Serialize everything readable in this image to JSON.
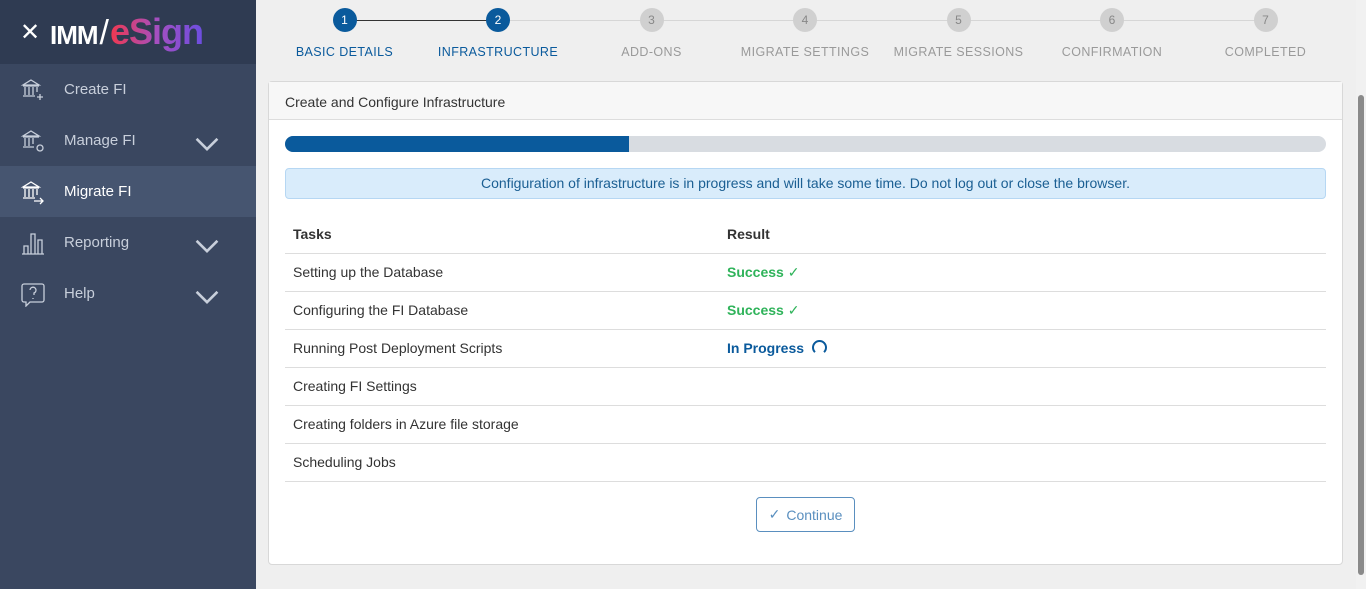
{
  "app": {
    "logo_left": "IMM",
    "logo_right": "eSign"
  },
  "sidebar": {
    "items": [
      {
        "label": "Create FI",
        "icon": "bank-plus-icon"
      },
      {
        "label": "Manage FI",
        "icon": "bank-gear-icon",
        "expandable": true
      },
      {
        "label": "Migrate FI",
        "icon": "bank-arrow-icon",
        "active": true
      },
      {
        "label": "Reporting",
        "icon": "bar-chart-icon",
        "expandable": true
      },
      {
        "label": "Help",
        "icon": "help-bubble-icon",
        "expandable": true
      }
    ]
  },
  "steps": [
    {
      "num": "1",
      "label": "BASIC DETAILS",
      "state": "done"
    },
    {
      "num": "2",
      "label": "INFRASTRUCTURE",
      "state": "current"
    },
    {
      "num": "3",
      "label": "ADD-ONS"
    },
    {
      "num": "4",
      "label": "MIGRATE SETTINGS"
    },
    {
      "num": "5",
      "label": "MIGRATE SESSIONS"
    },
    {
      "num": "6",
      "label": "CONFIRMATION"
    },
    {
      "num": "7",
      "label": "COMPLETED"
    }
  ],
  "card": {
    "title": "Create and Configure Infrastructure",
    "progress_percent": 33,
    "alert": "Configuration of infrastructure is in progress and will take some time. Do not log out or close the browser.",
    "headers": [
      "Tasks",
      "Result"
    ],
    "rows": [
      {
        "task": "Setting up the Database",
        "result": "Success"
      },
      {
        "task": "Configuring the FI Database",
        "result": "Success"
      },
      {
        "task": "Running Post Deployment Scripts",
        "result": "In Progress"
      },
      {
        "task": "Creating FI Settings",
        "result": ""
      },
      {
        "task": "Creating folders in Azure file storage",
        "result": ""
      },
      {
        "task": "Scheduling Jobs",
        "result": ""
      }
    ],
    "continue_label": "Continue"
  },
  "colors": {
    "primary": "#0a5a9c",
    "success": "#2fb35a",
    "sidebar": "#3a4760"
  }
}
